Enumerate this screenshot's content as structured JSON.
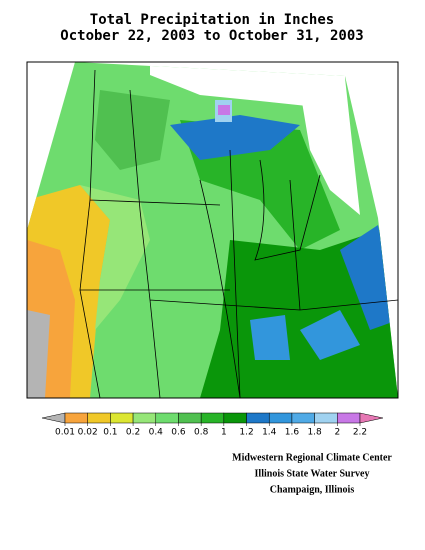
{
  "title": [
    "Total Precipitation in Inches",
    "October 22, 2003 to October 31, 2003"
  ],
  "legend": {
    "ticks": [
      0.01,
      0.02,
      0.1,
      0.2,
      0.4,
      0.6,
      0.8,
      1,
      1.2,
      1.4,
      1.6,
      1.8,
      2,
      2.2
    ],
    "colors": [
      "#b4b4b4",
      "#f7a43c",
      "#f0c828",
      "#dce632",
      "#96e678",
      "#6edc6e",
      "#50c050",
      "#28b428",
      "#0a960a",
      "#1e78c8",
      "#3296dc",
      "#50aae6",
      "#a0d2f0",
      "#c878e6",
      "#e678b4"
    ]
  },
  "credits": [
    "Midwestern Regional Climate Center",
    "Illinois State Water Survey",
    "Champaign, Illinois"
  ]
}
